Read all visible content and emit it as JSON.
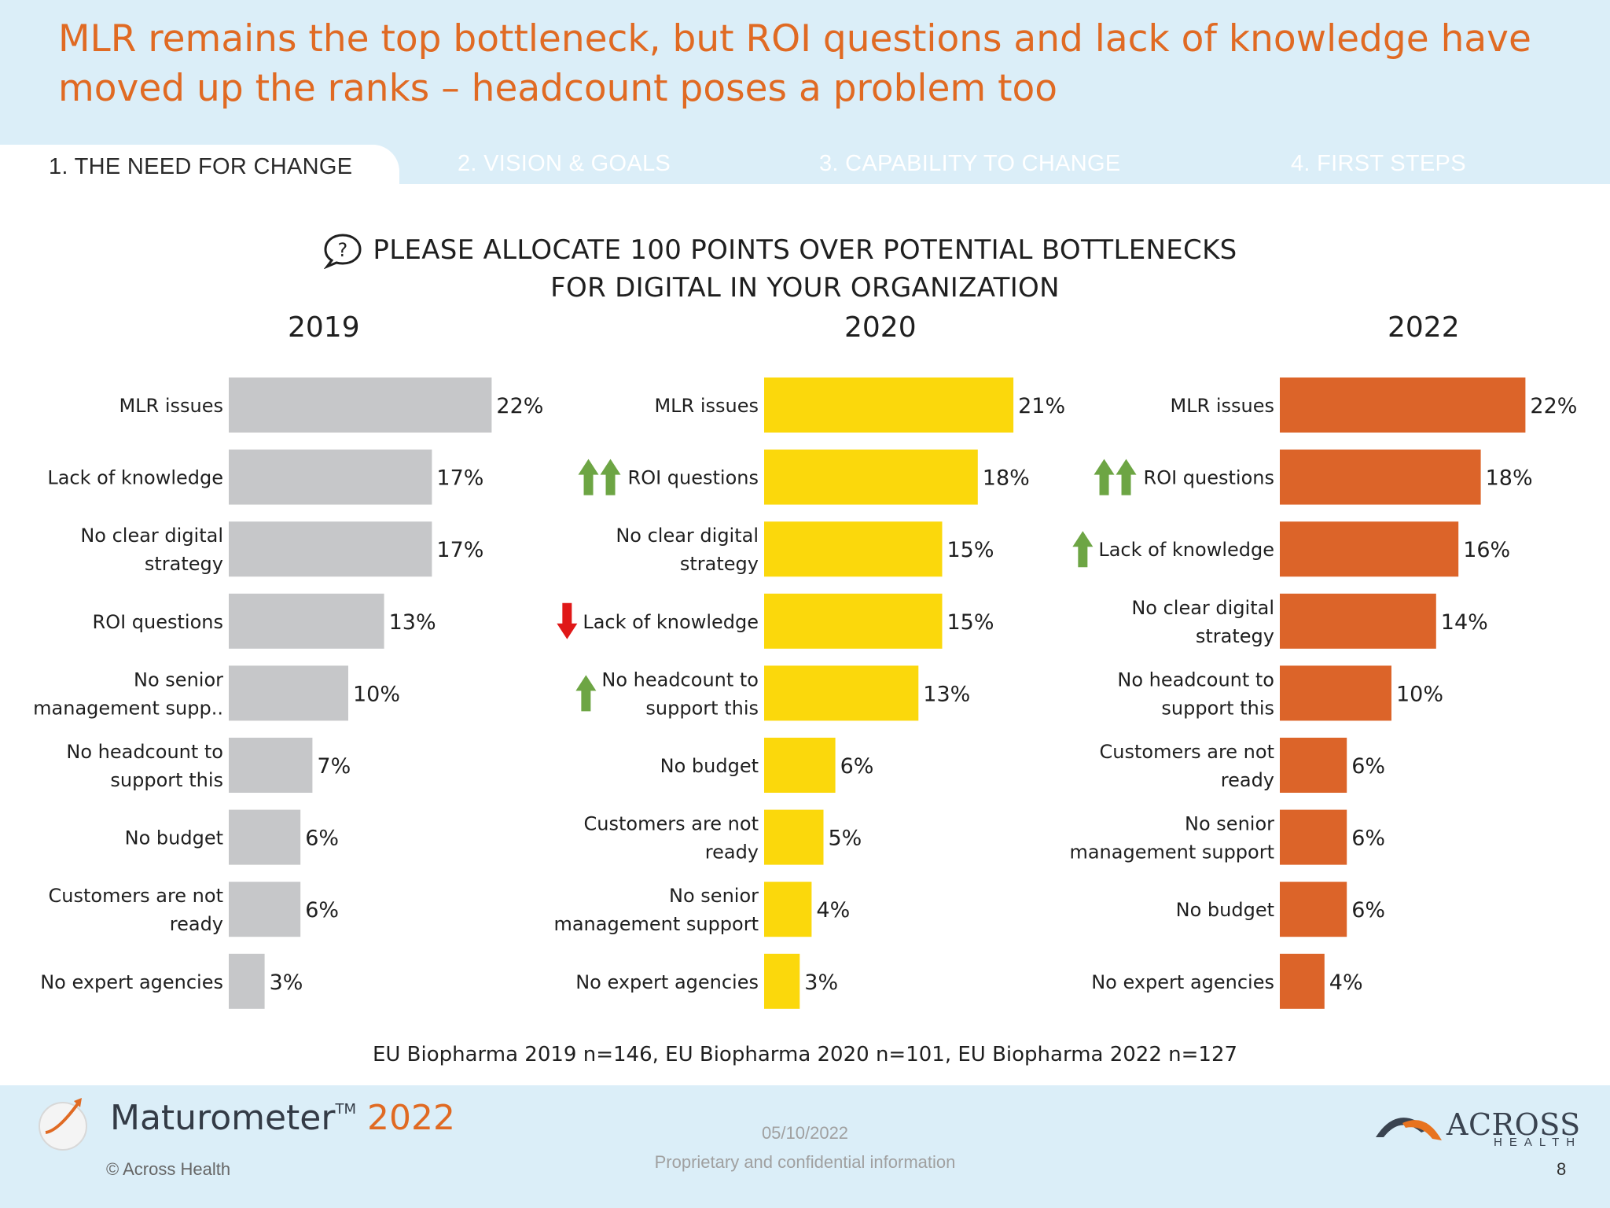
{
  "title": "MLR remains the top bottleneck, but ROI questions and lack of knowledge have moved up the ranks – headcount poses a problem too",
  "tabs": [
    {
      "label": "1.  THE NEED FOR CHANGE",
      "active": true
    },
    {
      "label": "2. VISION & GOALS",
      "active": false
    },
    {
      "label": "3. CAPABILITY TO CHANGE",
      "active": false
    },
    {
      "label": "4. FIRST STEPS",
      "active": false
    }
  ],
  "question": {
    "icon": "question-bubble-icon",
    "line1": "PLEASE ALLOCATE 100 POINTS OVER POTENTIAL BOTTLENECKS",
    "line2": "FOR DIGITAL IN YOUR ORGANIZATION"
  },
  "colors": {
    "title": "#e06a23",
    "bar_2019": "#c6c7c9",
    "bar_2020": "#fbd80c",
    "bar_2022": "#dc6429",
    "arrow_up": "#6da544",
    "arrow_down": "#e01818",
    "band": "#dbeef8"
  },
  "chart_data": [
    {
      "type": "bar",
      "orientation": "horizontal",
      "title": "2019",
      "categories": [
        "MLR issues",
        "Lack of knowledge",
        "No clear digital strategy",
        "ROI questions",
        "No senior management supp..",
        "No headcount to support this",
        "No budget",
        "Customers are not ready",
        "No expert agencies"
      ],
      "label_lines": [
        [
          "MLR issues"
        ],
        [
          "Lack of knowledge"
        ],
        [
          "No clear digital",
          "strategy"
        ],
        [
          "ROI questions"
        ],
        [
          "No senior",
          "management supp.."
        ],
        [
          "No headcount to",
          "support this"
        ],
        [
          "No budget"
        ],
        [
          "Customers are not",
          "ready"
        ],
        [
          "No expert agencies"
        ]
      ],
      "values": [
        22,
        17,
        17,
        13,
        10,
        7,
        6,
        6,
        3
      ],
      "value_labels": [
        "22%",
        "17%",
        "17%",
        "13%",
        "10%",
        "7%",
        "6%",
        "6%",
        "3%"
      ],
      "trend": [
        "",
        "",
        "",
        "",
        "",
        "",
        "",
        "",
        ""
      ],
      "unit": "%",
      "xlim": [
        0,
        22
      ]
    },
    {
      "type": "bar",
      "orientation": "horizontal",
      "title": "2020",
      "categories": [
        "MLR issues",
        "ROI questions",
        "No clear digital strategy",
        "Lack of knowledge",
        "No headcount to support this",
        "No budget",
        "Customers are not ready",
        "No senior management support",
        "No expert agencies"
      ],
      "label_lines": [
        [
          "MLR issues"
        ],
        [
          "ROI questions"
        ],
        [
          "No clear digital",
          "strategy"
        ],
        [
          "Lack of knowledge"
        ],
        [
          "No headcount to",
          "support this"
        ],
        [
          "No budget"
        ],
        [
          "Customers are not",
          "ready"
        ],
        [
          "No senior",
          "management support"
        ],
        [
          "No expert agencies"
        ]
      ],
      "values": [
        21,
        18,
        15,
        15,
        13,
        6,
        5,
        4,
        3
      ],
      "value_labels": [
        "21%",
        "18%",
        "15%",
        "15%",
        "13%",
        "6%",
        "5%",
        "4%",
        "3%"
      ],
      "trend": [
        "",
        "up2",
        "",
        "down",
        "up",
        "",
        "",
        "",
        ""
      ],
      "unit": "%",
      "xlim": [
        0,
        22
      ]
    },
    {
      "type": "bar",
      "orientation": "horizontal",
      "title": "2022",
      "categories": [
        "MLR issues",
        "ROI questions",
        "Lack of knowledge",
        "No clear digital strategy",
        "No headcount to support this",
        "Customers are not ready",
        "No senior management support",
        "No budget",
        "No expert agencies"
      ],
      "label_lines": [
        [
          "MLR issues"
        ],
        [
          "ROI questions"
        ],
        [
          "Lack of knowledge"
        ],
        [
          "No clear digital",
          "strategy"
        ],
        [
          "No headcount to",
          "support this"
        ],
        [
          "Customers are not",
          "ready"
        ],
        [
          "No senior",
          "management support"
        ],
        [
          "No budget"
        ],
        [
          "No expert agencies"
        ]
      ],
      "values": [
        22,
        18,
        16,
        14,
        10,
        6,
        6,
        6,
        4
      ],
      "value_labels": [
        "22%",
        "18%",
        "16%",
        "14%",
        "10%",
        "6%",
        "6%",
        "6%",
        "4%"
      ],
      "trend": [
        "",
        "up2",
        "up",
        "",
        "",
        "",
        "",
        "",
        ""
      ],
      "unit": "%",
      "xlim": [
        0,
        22
      ]
    }
  ],
  "sample_note": "EU Biopharma 2019 n=146, EU Biopharma 2020 n=101, EU Biopharma 2022 n=127",
  "footer": {
    "brand": "Maturometer",
    "trademark": "TM",
    "brand_year": "2022",
    "copyright": "© Across Health",
    "date": "05/10/2022",
    "confidential": "Proprietary and confidential information",
    "company": "ACROSS",
    "company_sub": "HEALTH",
    "page": "8"
  }
}
